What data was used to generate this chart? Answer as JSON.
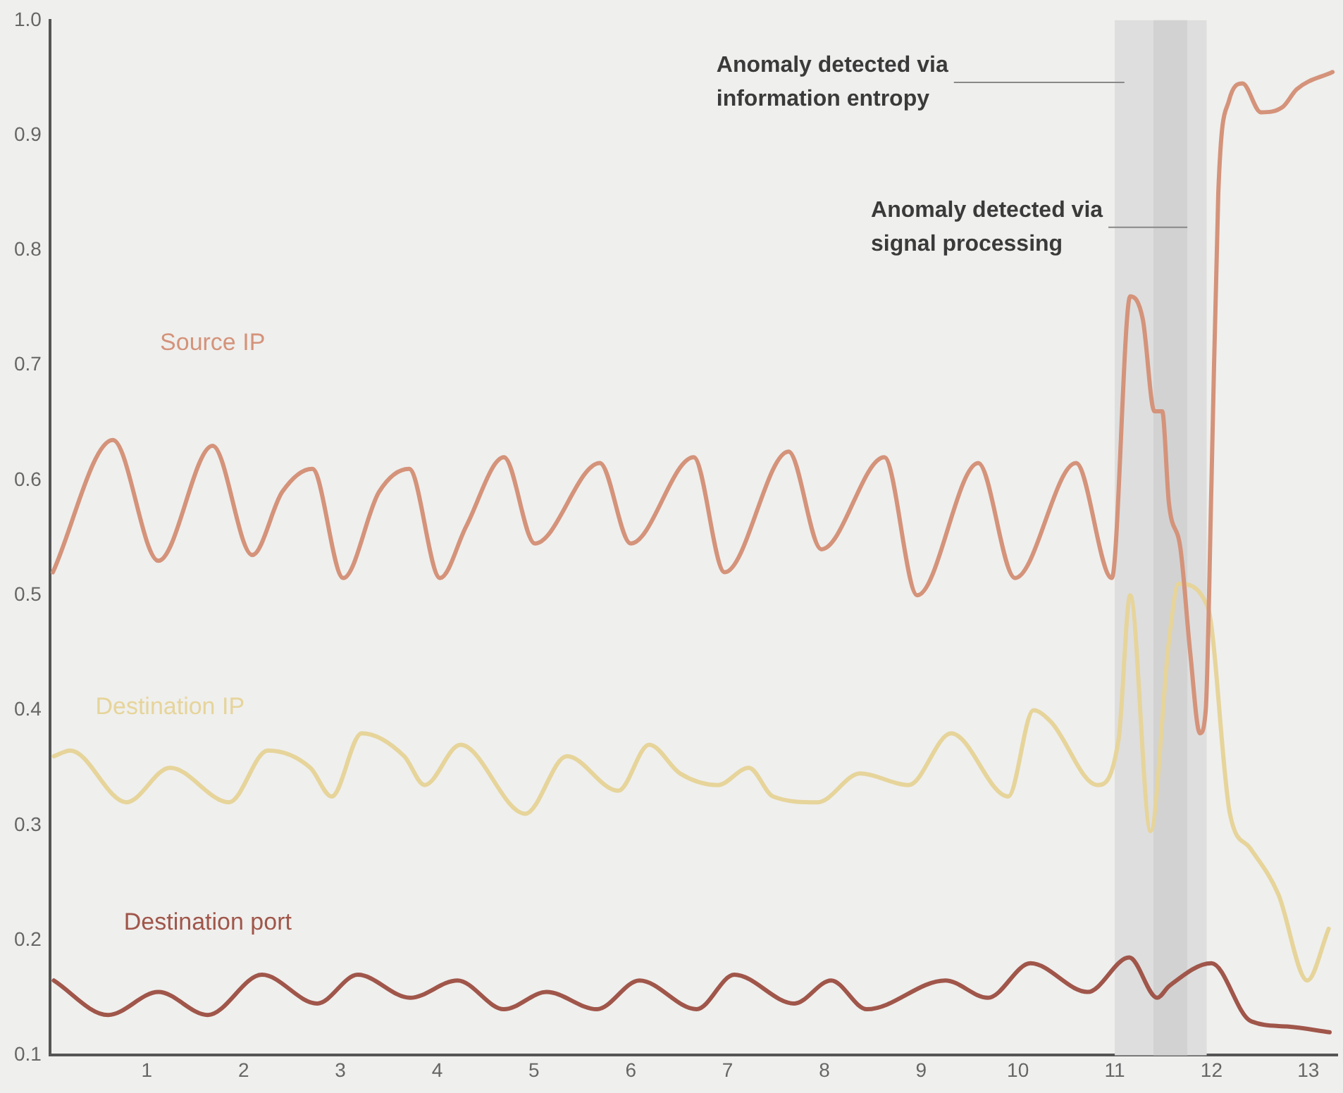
{
  "chart_data": {
    "type": "line",
    "xlim": [
      0,
      13.3
    ],
    "xticks": [
      1,
      2,
      3,
      4,
      5,
      6,
      7,
      8,
      9,
      10,
      11,
      12,
      13
    ],
    "ylim": [
      0.1,
      1.0
    ],
    "yticks": [
      0.1,
      0.2,
      0.3,
      0.4,
      0.5,
      0.6,
      0.7,
      0.8,
      0.9,
      {
        "value": 1.0,
        "label": "1.0"
      }
    ],
    "grid": false,
    "legend": false,
    "marker": "none",
    "line_style": "solid",
    "series": [
      {
        "name": "Source IP",
        "color": "#d4937a",
        "x": [
          0.03,
          0.65,
          1.12,
          1.68,
          2.09,
          2.4,
          2.71,
          3.03,
          3.4,
          3.71,
          4.03,
          4.3,
          4.69,
          5.01,
          5.68,
          6.0,
          6.65,
          6.97,
          7.63,
          7.97,
          8.62,
          8.96,
          9.59,
          9.97,
          10.6,
          10.97,
          11.16,
          11.29,
          11.41,
          11.49,
          11.56,
          11.68,
          11.78,
          11.88,
          11.94,
          12.0,
          12.07,
          12.18,
          12.32,
          12.51,
          12.74,
          12.88,
          13.25
        ],
        "values": [
          0.52,
          0.635,
          0.53,
          0.63,
          0.535,
          0.59,
          0.61,
          0.515,
          0.59,
          0.61,
          0.515,
          0.56,
          0.62,
          0.545,
          0.615,
          0.545,
          0.62,
          0.52,
          0.625,
          0.54,
          0.62,
          0.5,
          0.615,
          0.515,
          0.615,
          0.515,
          0.76,
          0.74,
          0.66,
          0.66,
          0.58,
          0.54,
          0.45,
          0.38,
          0.4,
          0.6,
          0.85,
          0.93,
          0.945,
          0.92,
          0.925,
          0.94,
          0.955
        ]
      },
      {
        "name": "Destination IP",
        "color": "#e6d49a",
        "x": [
          0.04,
          0.21,
          0.79,
          1.24,
          1.85,
          2.25,
          2.69,
          2.91,
          3.22,
          3.66,
          3.87,
          4.24,
          4.91,
          5.34,
          5.87,
          6.19,
          6.51,
          6.9,
          7.22,
          7.47,
          7.93,
          8.37,
          8.87,
          9.31,
          9.9,
          10.16,
          10.34,
          10.82,
          11.04,
          11.16,
          11.37,
          11.56,
          11.66,
          11.96,
          12.19,
          12.4,
          12.69,
          12.99,
          13.21
        ],
        "values": [
          0.36,
          0.365,
          0.32,
          0.35,
          0.32,
          0.365,
          0.35,
          0.325,
          0.38,
          0.36,
          0.335,
          0.37,
          0.31,
          0.36,
          0.33,
          0.37,
          0.345,
          0.335,
          0.35,
          0.325,
          0.32,
          0.345,
          0.335,
          0.38,
          0.325,
          0.4,
          0.39,
          0.335,
          0.375,
          0.5,
          0.295,
          0.46,
          0.51,
          0.49,
          0.31,
          0.28,
          0.24,
          0.165,
          0.21
        ]
      },
      {
        "name": "Destination port",
        "color": "#a0564a",
        "x": [
          0.04,
          0.6,
          1.12,
          1.63,
          2.19,
          2.76,
          3.18,
          3.72,
          4.21,
          4.69,
          5.13,
          5.65,
          6.09,
          6.68,
          7.07,
          7.69,
          8.07,
          8.44,
          9.25,
          9.69,
          10.13,
          10.72,
          11.15,
          11.44,
          11.56,
          12.0,
          12.4,
          12.78,
          13.22
        ],
        "values": [
          0.165,
          0.135,
          0.155,
          0.135,
          0.17,
          0.145,
          0.17,
          0.15,
          0.165,
          0.14,
          0.155,
          0.14,
          0.165,
          0.14,
          0.17,
          0.145,
          0.165,
          0.14,
          0.165,
          0.15,
          0.18,
          0.155,
          0.185,
          0.15,
          0.16,
          0.18,
          0.13,
          0.125,
          0.12
        ]
      }
    ],
    "bands": [
      {
        "axis": "x",
        "from": 11.0,
        "to": 11.95,
        "color": "#dedede",
        "label": "Anomaly detected via information entropy"
      },
      {
        "axis": "x",
        "from": 11.4,
        "to": 11.75,
        "color": "#d2d2d2",
        "label": "Anomaly detected via signal processing"
      }
    ]
  }
}
